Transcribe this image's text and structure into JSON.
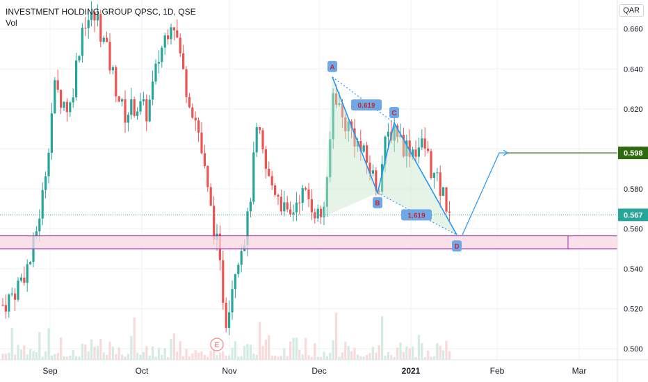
{
  "header": {
    "title": "INVESTMENT HOLDING GROUP QPSC, 1D, QSE",
    "volume_label": "Vol",
    "currency": "QAR"
  },
  "chart_data": {
    "type": "candlestick",
    "y_ticks": [
      "0.660",
      "0.640",
      "0.620",
      "0.600",
      "0.580",
      "0.560",
      "0.540",
      "0.520",
      "0.500"
    ],
    "y_range": [
      0.4945,
      0.6745
    ],
    "x_ticks": [
      "Sep",
      "Oct",
      "Nov",
      "Dec",
      "2021",
      "Feb",
      "Mar"
    ],
    "price_labels": [
      {
        "value": 0.598,
        "text": "0.598",
        "color": "#2e6b0f"
      },
      {
        "value": 0.567,
        "text": "0.567",
        "color": "#26a69a"
      }
    ],
    "support_zone": [
      0.55,
      0.5565
    ],
    "harmonic_pattern": {
      "points": [
        {
          "label": "A",
          "price": 0.636
        },
        {
          "label": "B",
          "price": 0.578
        },
        {
          "label": "C",
          "price": 0.613
        },
        {
          "label": "D",
          "price": 0.557
        }
      ],
      "ratios": [
        "0.619",
        "1.619"
      ]
    },
    "projection_target": 0.598,
    "event_marker": "E",
    "colors": {
      "up": "#26a69a",
      "down": "#ef5350",
      "pattern": "#2196f3",
      "zone": "#9c27b0",
      "target": "#2e6b0f"
    }
  }
}
